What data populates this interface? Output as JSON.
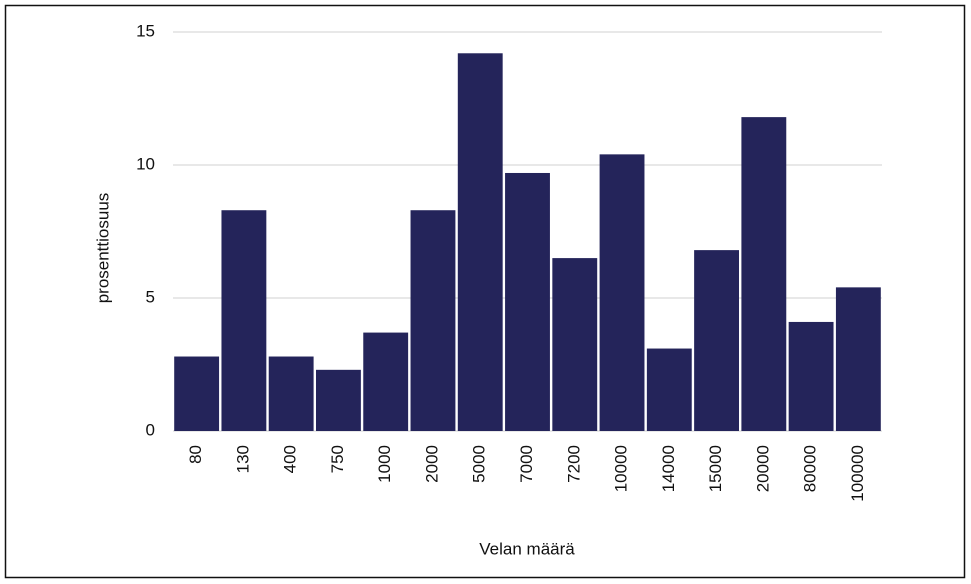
{
  "chart_data": {
    "type": "bar",
    "x_label": "Velan määrä",
    "y_label": "prosenttiosuus",
    "categories": [
      "80",
      "130",
      "400",
      "750",
      "1000",
      "2000",
      "5000",
      "7000",
      "7200",
      "10000",
      "14000",
      "15000",
      "20000",
      "80000",
      "100000"
    ],
    "values": [
      2.8,
      8.3,
      2.8,
      2.3,
      3.7,
      8.3,
      14.2,
      9.7,
      6.5,
      10.4,
      3.1,
      6.8,
      11.8,
      4.1,
      5.4
    ],
    "color": "#24245a",
    "ylim": [
      0,
      15
    ],
    "yticks": [
      0,
      5,
      10,
      15
    ],
    "grid": true
  }
}
